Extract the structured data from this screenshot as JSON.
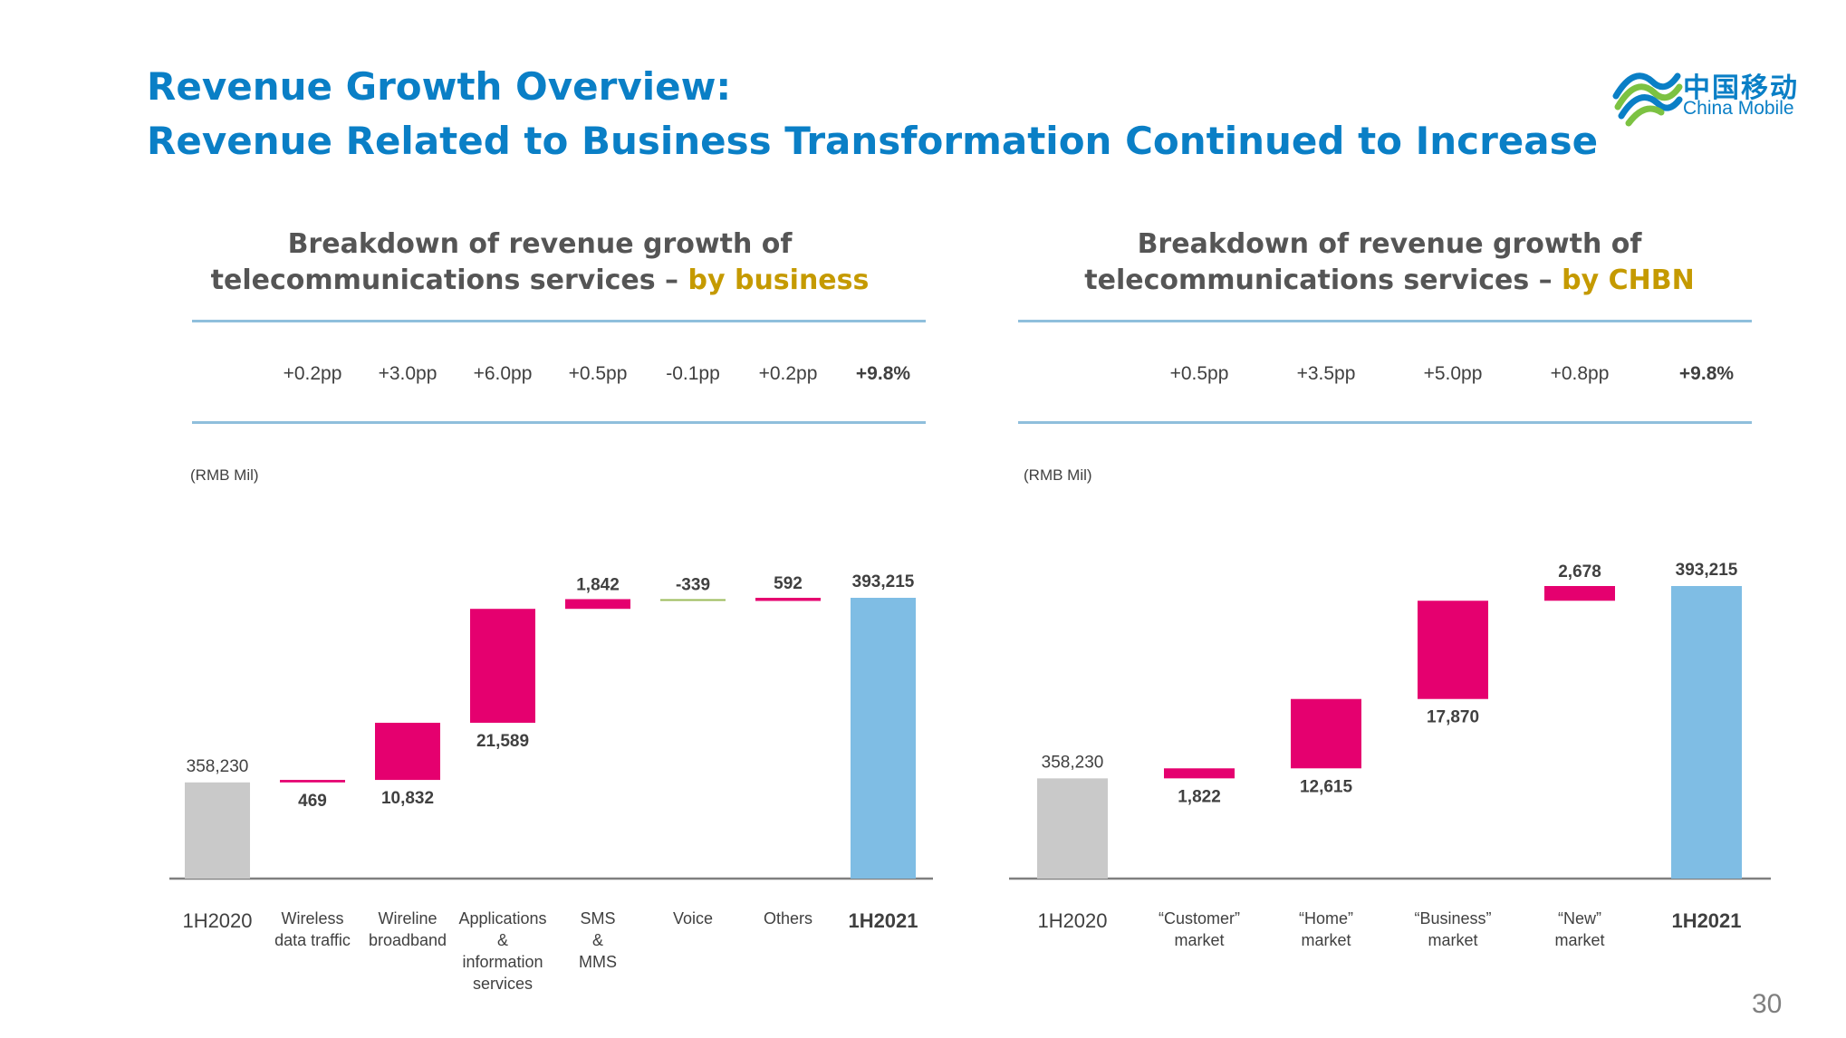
{
  "title_line1": "Revenue Growth Overview:",
  "title_line2": "Revenue Related to Business Transformation Continued to Increase",
  "logo": {
    "cn": "中国移动",
    "en": "China Mobile"
  },
  "page_number": "30",
  "colors": {
    "brand_blue": "#0a7fc6",
    "increase": "#e5006f",
    "decrease": "#9bbb59",
    "start_bar": "#c9c9c9",
    "end_bar": "#7fbde4",
    "highlight": "#c59a00"
  },
  "left": {
    "title_line1": "Breakdown of revenue growth of",
    "title_line2_prefix": "telecommunications services – ",
    "title_line2_highlight": "by business"
  },
  "right": {
    "title_line1": "Breakdown of revenue growth of",
    "title_line2_prefix": "telecommunications services – ",
    "title_line2_highlight": "by CHBN"
  },
  "chart_data": [
    {
      "type": "bar",
      "subtype": "waterfall",
      "unit_label": "(RMB Mil)",
      "categories": [
        "1H2020",
        "Wireless\ndata traffic",
        "Wireline\nbroadband",
        "Applications\n&\ninformation\nservices",
        "SMS\n&\nMMS",
        "Voice",
        "Others",
        "1H2021"
      ],
      "values": [
        358230,
        469,
        10832,
        21589,
        1842,
        -339,
        592,
        393215
      ],
      "value_labels": [
        "358,230",
        "469",
        "10,832",
        "21,589",
        "1,842",
        "-339",
        "592",
        "393,215"
      ],
      "growth_contribution": [
        "",
        "+0.2pp",
        "+3.0pp",
        "+6.0pp",
        "+0.5pp",
        "-0.1pp",
        "+0.2pp",
        "+9.8%"
      ],
      "total_bars": [
        0,
        7
      ]
    },
    {
      "type": "bar",
      "subtype": "waterfall",
      "unit_label": "(RMB Mil)",
      "categories": [
        "1H2020",
        "“Customer”\nmarket",
        "“Home”\nmarket",
        "“Business”\nmarket",
        "“New”\nmarket",
        "1H2021"
      ],
      "values": [
        358230,
        1822,
        12615,
        17870,
        2678,
        393215
      ],
      "value_labels": [
        "358,230",
        "1,822",
        "12,615",
        "17,870",
        "2,678",
        "393,215"
      ],
      "growth_contribution": [
        "",
        "+0.5pp",
        "+3.5pp",
        "+5.0pp",
        "+0.8pp",
        "+9.8%"
      ],
      "total_bars": [
        0,
        5
      ]
    }
  ]
}
